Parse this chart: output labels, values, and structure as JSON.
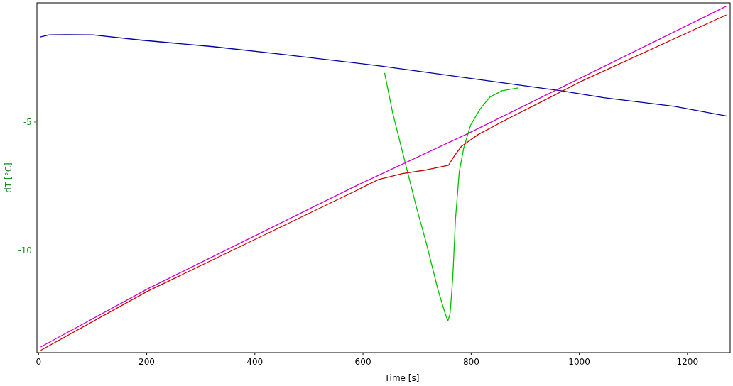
{
  "chart_data": {
    "type": "line",
    "xlabel": "Time [s]",
    "ylabel": "dT  [°C]",
    "xlim": [
      -3,
      1279
    ],
    "ylim": [
      -14.0,
      -0.35
    ],
    "xticks": [
      0,
      200,
      400,
      600,
      800,
      1000,
      1200
    ],
    "yticks": [
      -5,
      -10
    ],
    "grid": false,
    "marker": "none",
    "line_style": "solid",
    "series": [
      {
        "color": "#0000a0",
        "x": [
          3,
          20,
          50,
          100,
          192,
          323,
          454,
          631,
          927,
          966,
          1045,
          1176,
          1273
        ],
        "values": [
          -1.68,
          -1.6,
          -1.59,
          -1.6,
          -1.81,
          -2.06,
          -2.37,
          -2.81,
          -3.67,
          -3.78,
          -4.05,
          -4.39,
          -4.77
        ]
      },
      {
        "color": "#00c000",
        "x": [
          640,
          655,
          677,
          699,
          717,
          739,
          752,
          757,
          761,
          766,
          771,
          778,
          786,
          799,
          817,
          835,
          857,
          887
        ],
        "values": [
          -3.09,
          -4.66,
          -6.5,
          -8.34,
          -9.72,
          -11.57,
          -12.48,
          -12.76,
          -12.48,
          -11.1,
          -8.8,
          -6.95,
          -6.04,
          -5.12,
          -4.48,
          -4.02,
          -3.78,
          -3.67
        ]
      },
      {
        "color": "#cc00cc",
        "x": [
          4,
          201,
          585,
          795,
          1272
        ],
        "values": [
          -13.78,
          -11.52,
          -7.51,
          -5.44,
          -0.48
        ]
      },
      {
        "color": "#cc0000",
        "x": [
          4,
          201,
          585,
          629,
          673,
          717,
          758,
          769,
          782,
          813,
          870,
          957,
          1000,
          1272
        ],
        "values": [
          -13.91,
          -11.61,
          -7.7,
          -7.24,
          -7.01,
          -6.87,
          -6.69,
          -6.32,
          -5.95,
          -5.49,
          -4.85,
          -3.92,
          -3.45,
          -0.82
        ]
      }
    ]
  }
}
